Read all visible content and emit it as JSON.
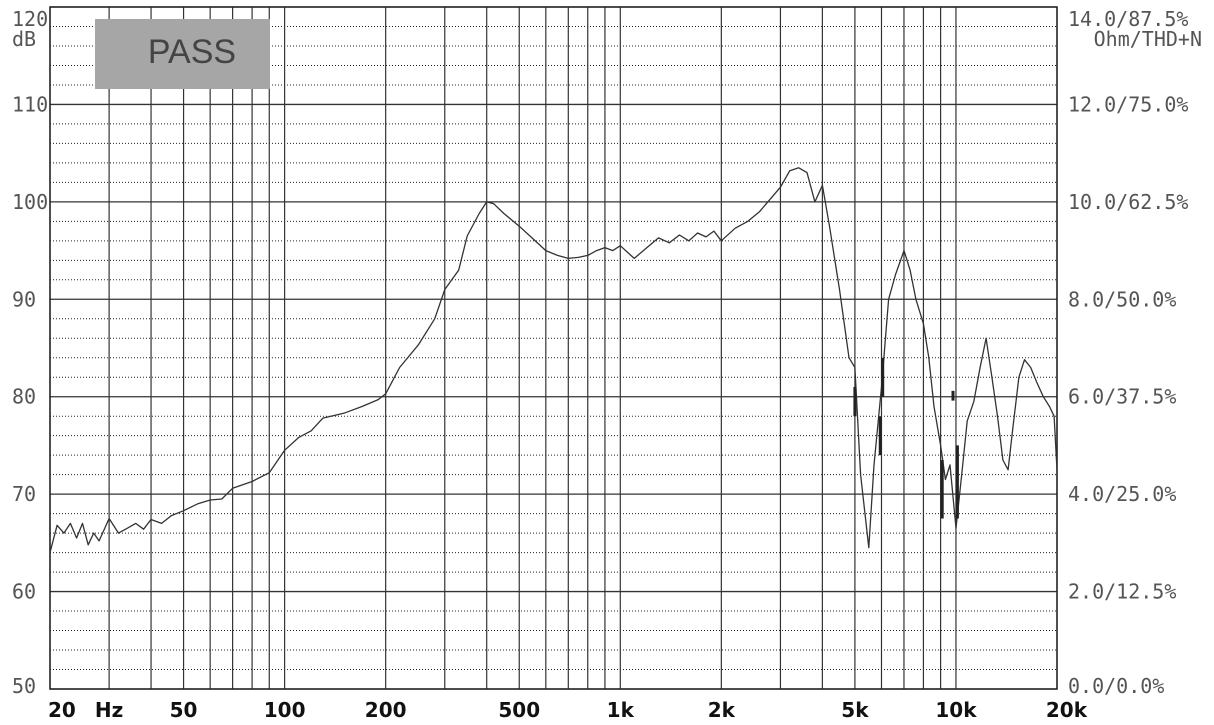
{
  "badge": "PASS",
  "chart_data": {
    "type": "line",
    "x_scale": "log",
    "xlim": [
      20,
      20000
    ],
    "ylim": [
      50,
      120
    ],
    "y2lim": [
      0,
      14
    ],
    "grid": true,
    "left_unit": "dB",
    "right_unit": "Ohm/THD+N",
    "left_ticks": [
      "120",
      "110",
      "100",
      "90",
      "80",
      "70",
      "60",
      "50"
    ],
    "right_ticks": [
      "14.0/87.5%",
      "12.0/75.0%",
      "10.0/62.5%",
      "8.0/50.0%",
      "6.0/37.5%",
      "4.0/25.0%",
      "2.0/12.5%",
      "0.0/0.0%"
    ],
    "x_ticks": [
      {
        "value": 20,
        "label": "20"
      },
      {
        "value": 30,
        "label": "Hz"
      },
      {
        "value": 50,
        "label": "50"
      },
      {
        "value": 100,
        "label": "100"
      },
      {
        "value": 200,
        "label": "200"
      },
      {
        "value": 500,
        "label": "500"
      },
      {
        "value": 1000,
        "label": "1k"
      },
      {
        "value": 2000,
        "label": "2k"
      },
      {
        "value": 5000,
        "label": "5k"
      },
      {
        "value": 10000,
        "label": "10k"
      },
      {
        "value": 20000,
        "label": "20k"
      }
    ],
    "series": [
      {
        "color": "#333333",
        "x": [
          20,
          21,
          22,
          23,
          24,
          25,
          26,
          27,
          28,
          30,
          32,
          34,
          36,
          38,
          40,
          43,
          46,
          50,
          55,
          60,
          65,
          70,
          80,
          90,
          100,
          110,
          120,
          130,
          150,
          170,
          190,
          200,
          220,
          250,
          280,
          300,
          330,
          350,
          380,
          400,
          420,
          450,
          500,
          550,
          600,
          650,
          700,
          750,
          800,
          850,
          900,
          950,
          1000,
          1100,
          1200,
          1300,
          1400,
          1500,
          1600,
          1700,
          1800,
          1900,
          2000,
          2200,
          2400,
          2600,
          2800,
          3000,
          3200,
          3400,
          3600,
          3800,
          4000,
          4200,
          4500,
          4800,
          5000,
          5200,
          5500,
          5700,
          6000,
          6300,
          6600,
          7000,
          7300,
          7600,
          8000,
          8300,
          8600,
          9000,
          9300,
          9600,
          10000,
          10400,
          10800,
          11300,
          11800,
          12300,
          12800,
          13300,
          13800,
          14300,
          14800,
          15400,
          16000,
          16700,
          17400,
          18200,
          19000,
          19600,
          20000
        ],
        "y": [
          64.0,
          66.8,
          66.0,
          67.0,
          65.5,
          67.0,
          64.8,
          66.0,
          65.2,
          67.5,
          66.0,
          66.5,
          67.0,
          66.4,
          67.4,
          67.0,
          67.8,
          68.3,
          69.0,
          69.4,
          69.5,
          70.6,
          71.3,
          72.2,
          74.5,
          75.8,
          76.5,
          77.8,
          78.3,
          79.0,
          79.7,
          80.3,
          83.0,
          85.3,
          88.0,
          91.0,
          93.0,
          96.5,
          98.8,
          100.0,
          99.8,
          98.8,
          97.5,
          96.2,
          95.0,
          94.5,
          94.2,
          94.3,
          94.5,
          95.0,
          95.3,
          95.0,
          95.5,
          94.2,
          95.3,
          96.3,
          95.8,
          96.6,
          96.0,
          96.8,
          96.4,
          97.0,
          96.0,
          97.3,
          98.0,
          99.0,
          100.3,
          101.5,
          103.2,
          103.5,
          103.0,
          100.0,
          101.7,
          97.5,
          91.0,
          84.0,
          83.0,
          72.0,
          64.5,
          73.0,
          81.0,
          90.0,
          92.5,
          95.0,
          93.0,
          90.0,
          87.5,
          84.0,
          79.0,
          75.0,
          71.5,
          73.0,
          66.5,
          72.0,
          77.5,
          79.5,
          83.0,
          86.0,
          82.0,
          78.0,
          73.5,
          72.5,
          77.0,
          82.0,
          83.8,
          83.0,
          81.5,
          80.0,
          79.0,
          78.0,
          72.5
        ]
      }
    ],
    "spikes": [
      {
        "x": 5000,
        "y0": 81.0,
        "y1": 78.0
      },
      {
        "x": 5950,
        "y0": 78.0,
        "y1": 74.0
      },
      {
        "x": 6050,
        "y0": 84.0,
        "y1": 80.0
      },
      {
        "x": 9100,
        "y0": 73.5,
        "y1": 67.5
      },
      {
        "x": 9800,
        "y0": 80.6,
        "y1": 79.6
      },
      {
        "x": 10100,
        "y0": 75.0,
        "y1": 67.5
      }
    ]
  }
}
